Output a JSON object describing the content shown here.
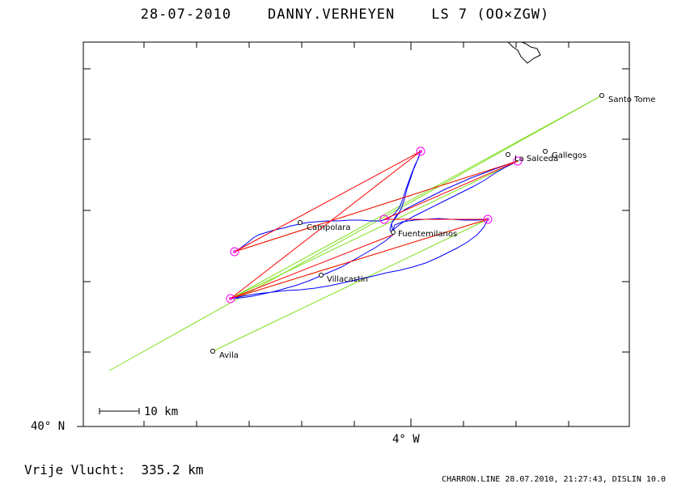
{
  "title": "28-07-2010    DANNY.VERHEYEN    LS 7 (OO×ZGW)",
  "summary": "Vrije Vlucht:  335.2 km",
  "footer": "CHARRON.LINE 28.07.2010, 21:27:43, DISLIN 10.0",
  "map": {
    "scale_label": "10 km",
    "lat_label": "40° N",
    "lon_label": "4° W",
    "colors": {
      "track": "#0000ff",
      "flight_lines": "#ff0000",
      "optimal_lines": "#80e020",
      "turnpoint_marker": "#ff00ff",
      "frame": "#000000"
    }
  },
  "places": [
    {
      "name": "Santo Tome"
    },
    {
      "name": "Gallegos"
    },
    {
      "name": "La Salceda"
    },
    {
      "name": "Campolara"
    },
    {
      "name": "Fuentemilanos"
    },
    {
      "name": "Villacastin"
    },
    {
      "name": "Avila"
    }
  ]
}
